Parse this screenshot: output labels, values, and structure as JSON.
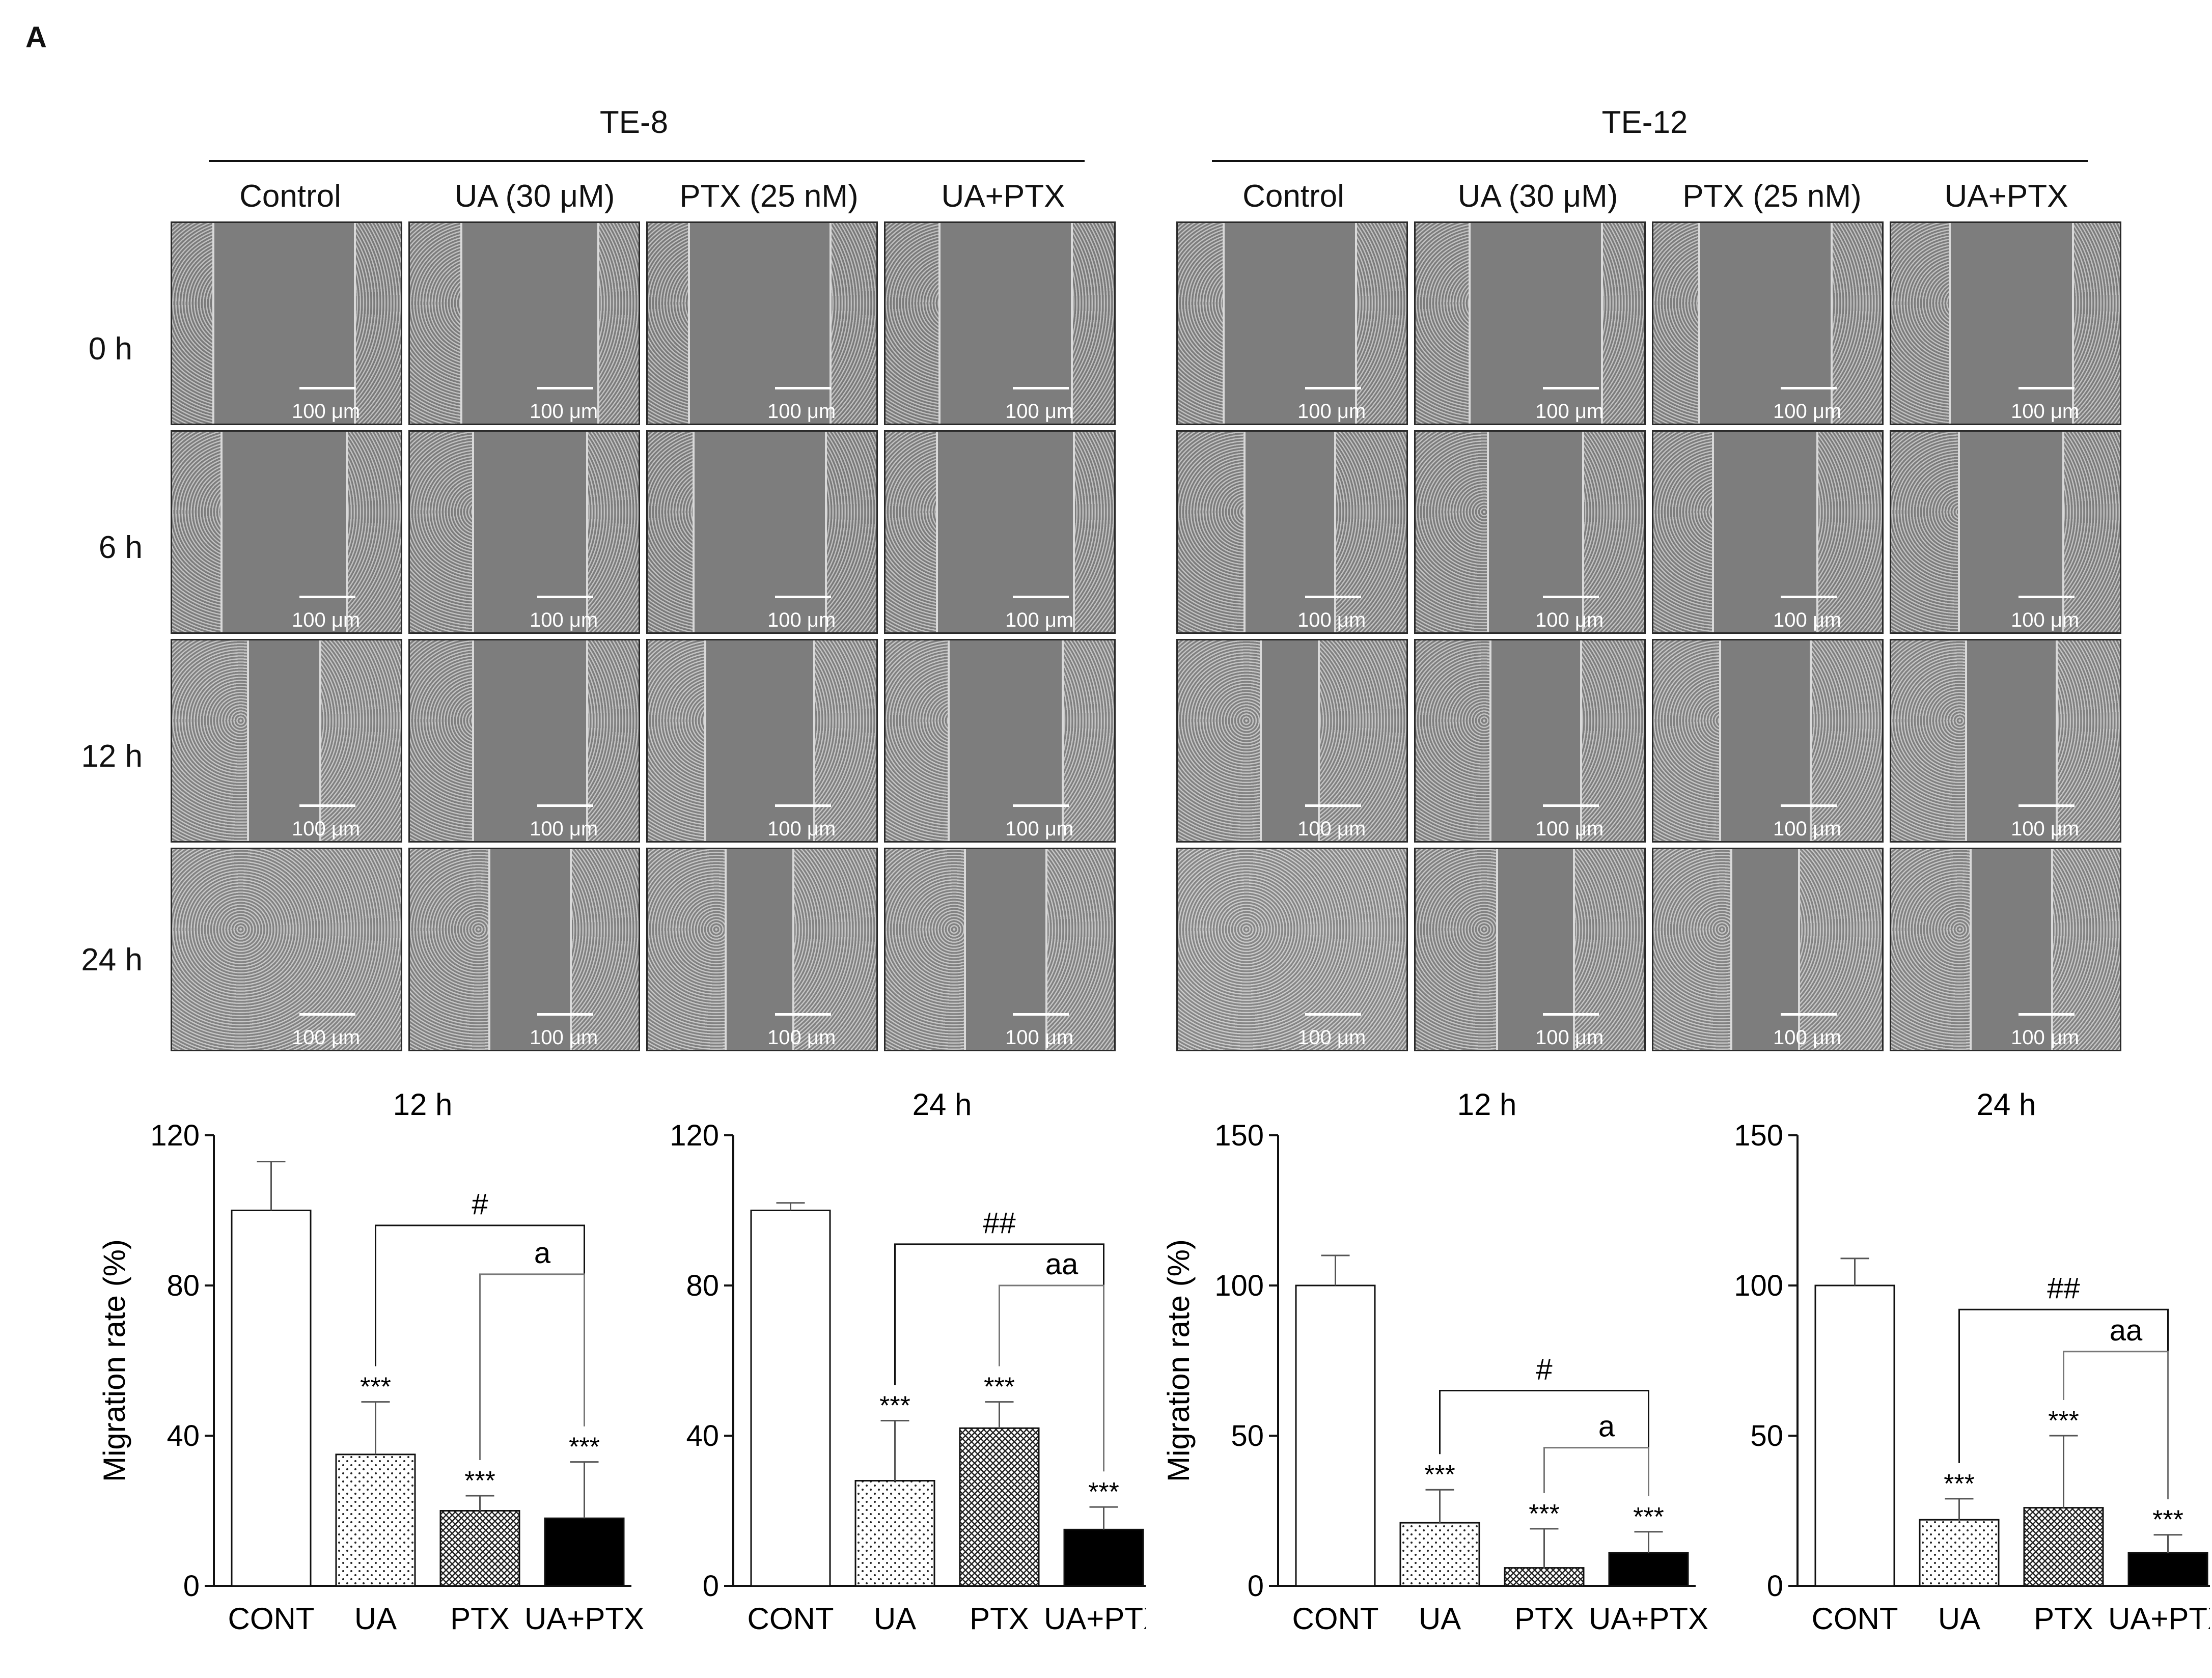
{
  "panel_label": "A",
  "cell_lines": [
    "TE-8",
    "TE-12"
  ],
  "conditions": [
    "Control",
    "UA (30 μM)",
    "PTX (25 nM)",
    "UA+PTX"
  ],
  "time_points": [
    "0 h",
    "6 h",
    "12 h",
    "24 h"
  ],
  "scale_bar_label": "100 μm",
  "micrographs": {
    "note_gap_fraction": "relative wound width (fraction of image width) per row (time) x column (condition)",
    "TE-8": {
      "gap": [
        [
          0.62,
          0.6,
          0.62,
          0.58
        ],
        [
          0.55,
          0.5,
          0.58,
          0.6
        ],
        [
          0.32,
          0.5,
          0.48,
          0.5
        ],
        [
          0.0,
          0.36,
          0.3,
          0.36
        ]
      ],
      "density": [
        [
          0.55,
          0.6,
          0.55,
          0.55
        ],
        [
          0.6,
          0.6,
          0.55,
          0.6
        ],
        [
          0.7,
          0.65,
          0.7,
          0.7
        ],
        [
          0.75,
          0.7,
          0.72,
          0.72
        ]
      ]
    },
    "TE-12": {
      "gap": [
        [
          0.58,
          0.58,
          0.58,
          0.54
        ],
        [
          0.4,
          0.42,
          0.46,
          0.46
        ],
        [
          0.26,
          0.4,
          0.4,
          0.4
        ],
        [
          0.0,
          0.34,
          0.3,
          0.36
        ]
      ],
      "density": [
        [
          0.6,
          0.6,
          0.6,
          0.6
        ],
        [
          0.6,
          0.6,
          0.6,
          0.6
        ],
        [
          0.7,
          0.65,
          0.7,
          0.7
        ],
        [
          0.85,
          0.7,
          0.75,
          0.72
        ]
      ]
    }
  },
  "chart_data": [
    {
      "type": "bar",
      "group": "TE-8",
      "title": "12 h",
      "ylabel": "Migration rate (%)",
      "ylim": [
        0,
        120
      ],
      "yticks": [
        0,
        40,
        80,
        120
      ],
      "categories": [
        "CONT",
        "UA",
        "PTX",
        "UA+PTX"
      ],
      "values": [
        100,
        35,
        20,
        18
      ],
      "errors": [
        13,
        14,
        4,
        15
      ],
      "fills": [
        "white",
        "dots",
        "hatch",
        "black"
      ],
      "significance": [
        "",
        "***",
        "***",
        "***"
      ],
      "brackets": [
        {
          "label": "#",
          "from": 1,
          "to": 3,
          "y": 96
        },
        {
          "label": "a",
          "from": 2,
          "to": 3,
          "y": 83
        }
      ]
    },
    {
      "type": "bar",
      "group": "TE-8",
      "title": "24 h",
      "ylabel": "",
      "ylim": [
        0,
        120
      ],
      "yticks": [
        0,
        40,
        80,
        120
      ],
      "categories": [
        "CONT",
        "UA",
        "PTX",
        "UA+PTX"
      ],
      "values": [
        100,
        28,
        42,
        15
      ],
      "errors": [
        2,
        16,
        7,
        6
      ],
      "fills": [
        "white",
        "dots",
        "hatch",
        "black"
      ],
      "significance": [
        "",
        "***",
        "***",
        "***"
      ],
      "brackets": [
        {
          "label": "##",
          "from": 1,
          "to": 3,
          "y": 91
        },
        {
          "label": "aa",
          "from": 2,
          "to": 3,
          "y": 80
        }
      ]
    },
    {
      "type": "bar",
      "group": "TE-12",
      "title": "12 h",
      "ylabel": "Migration rate (%)",
      "ylim": [
        0,
        150
      ],
      "yticks": [
        0,
        50,
        100,
        150
      ],
      "categories": [
        "CONT",
        "UA",
        "PTX",
        "UA+PTX"
      ],
      "values": [
        100,
        21,
        6,
        11
      ],
      "errors": [
        10,
        11,
        13,
        7
      ],
      "fills": [
        "white",
        "dots",
        "hatch",
        "black"
      ],
      "significance": [
        "",
        "***",
        "***",
        "***"
      ],
      "brackets": [
        {
          "label": "#",
          "from": 1,
          "to": 3,
          "y": 65
        },
        {
          "label": "a",
          "from": 2,
          "to": 3,
          "y": 46
        }
      ]
    },
    {
      "type": "bar",
      "group": "TE-12",
      "title": "24 h",
      "ylabel": "",
      "ylim": [
        0,
        150
      ],
      "yticks": [
        0,
        50,
        100,
        150
      ],
      "categories": [
        "CONT",
        "UA",
        "PTX",
        "UA+PTX"
      ],
      "values": [
        100,
        22,
        26,
        11
      ],
      "errors": [
        9,
        7,
        24,
        6
      ],
      "fills": [
        "white",
        "dots",
        "hatch",
        "black"
      ],
      "significance": [
        "",
        "***",
        "***",
        "***"
      ],
      "brackets": [
        {
          "label": "##",
          "from": 1,
          "to": 3,
          "y": 92
        },
        {
          "label": "aa",
          "from": 2,
          "to": 3,
          "y": 78
        }
      ]
    }
  ]
}
